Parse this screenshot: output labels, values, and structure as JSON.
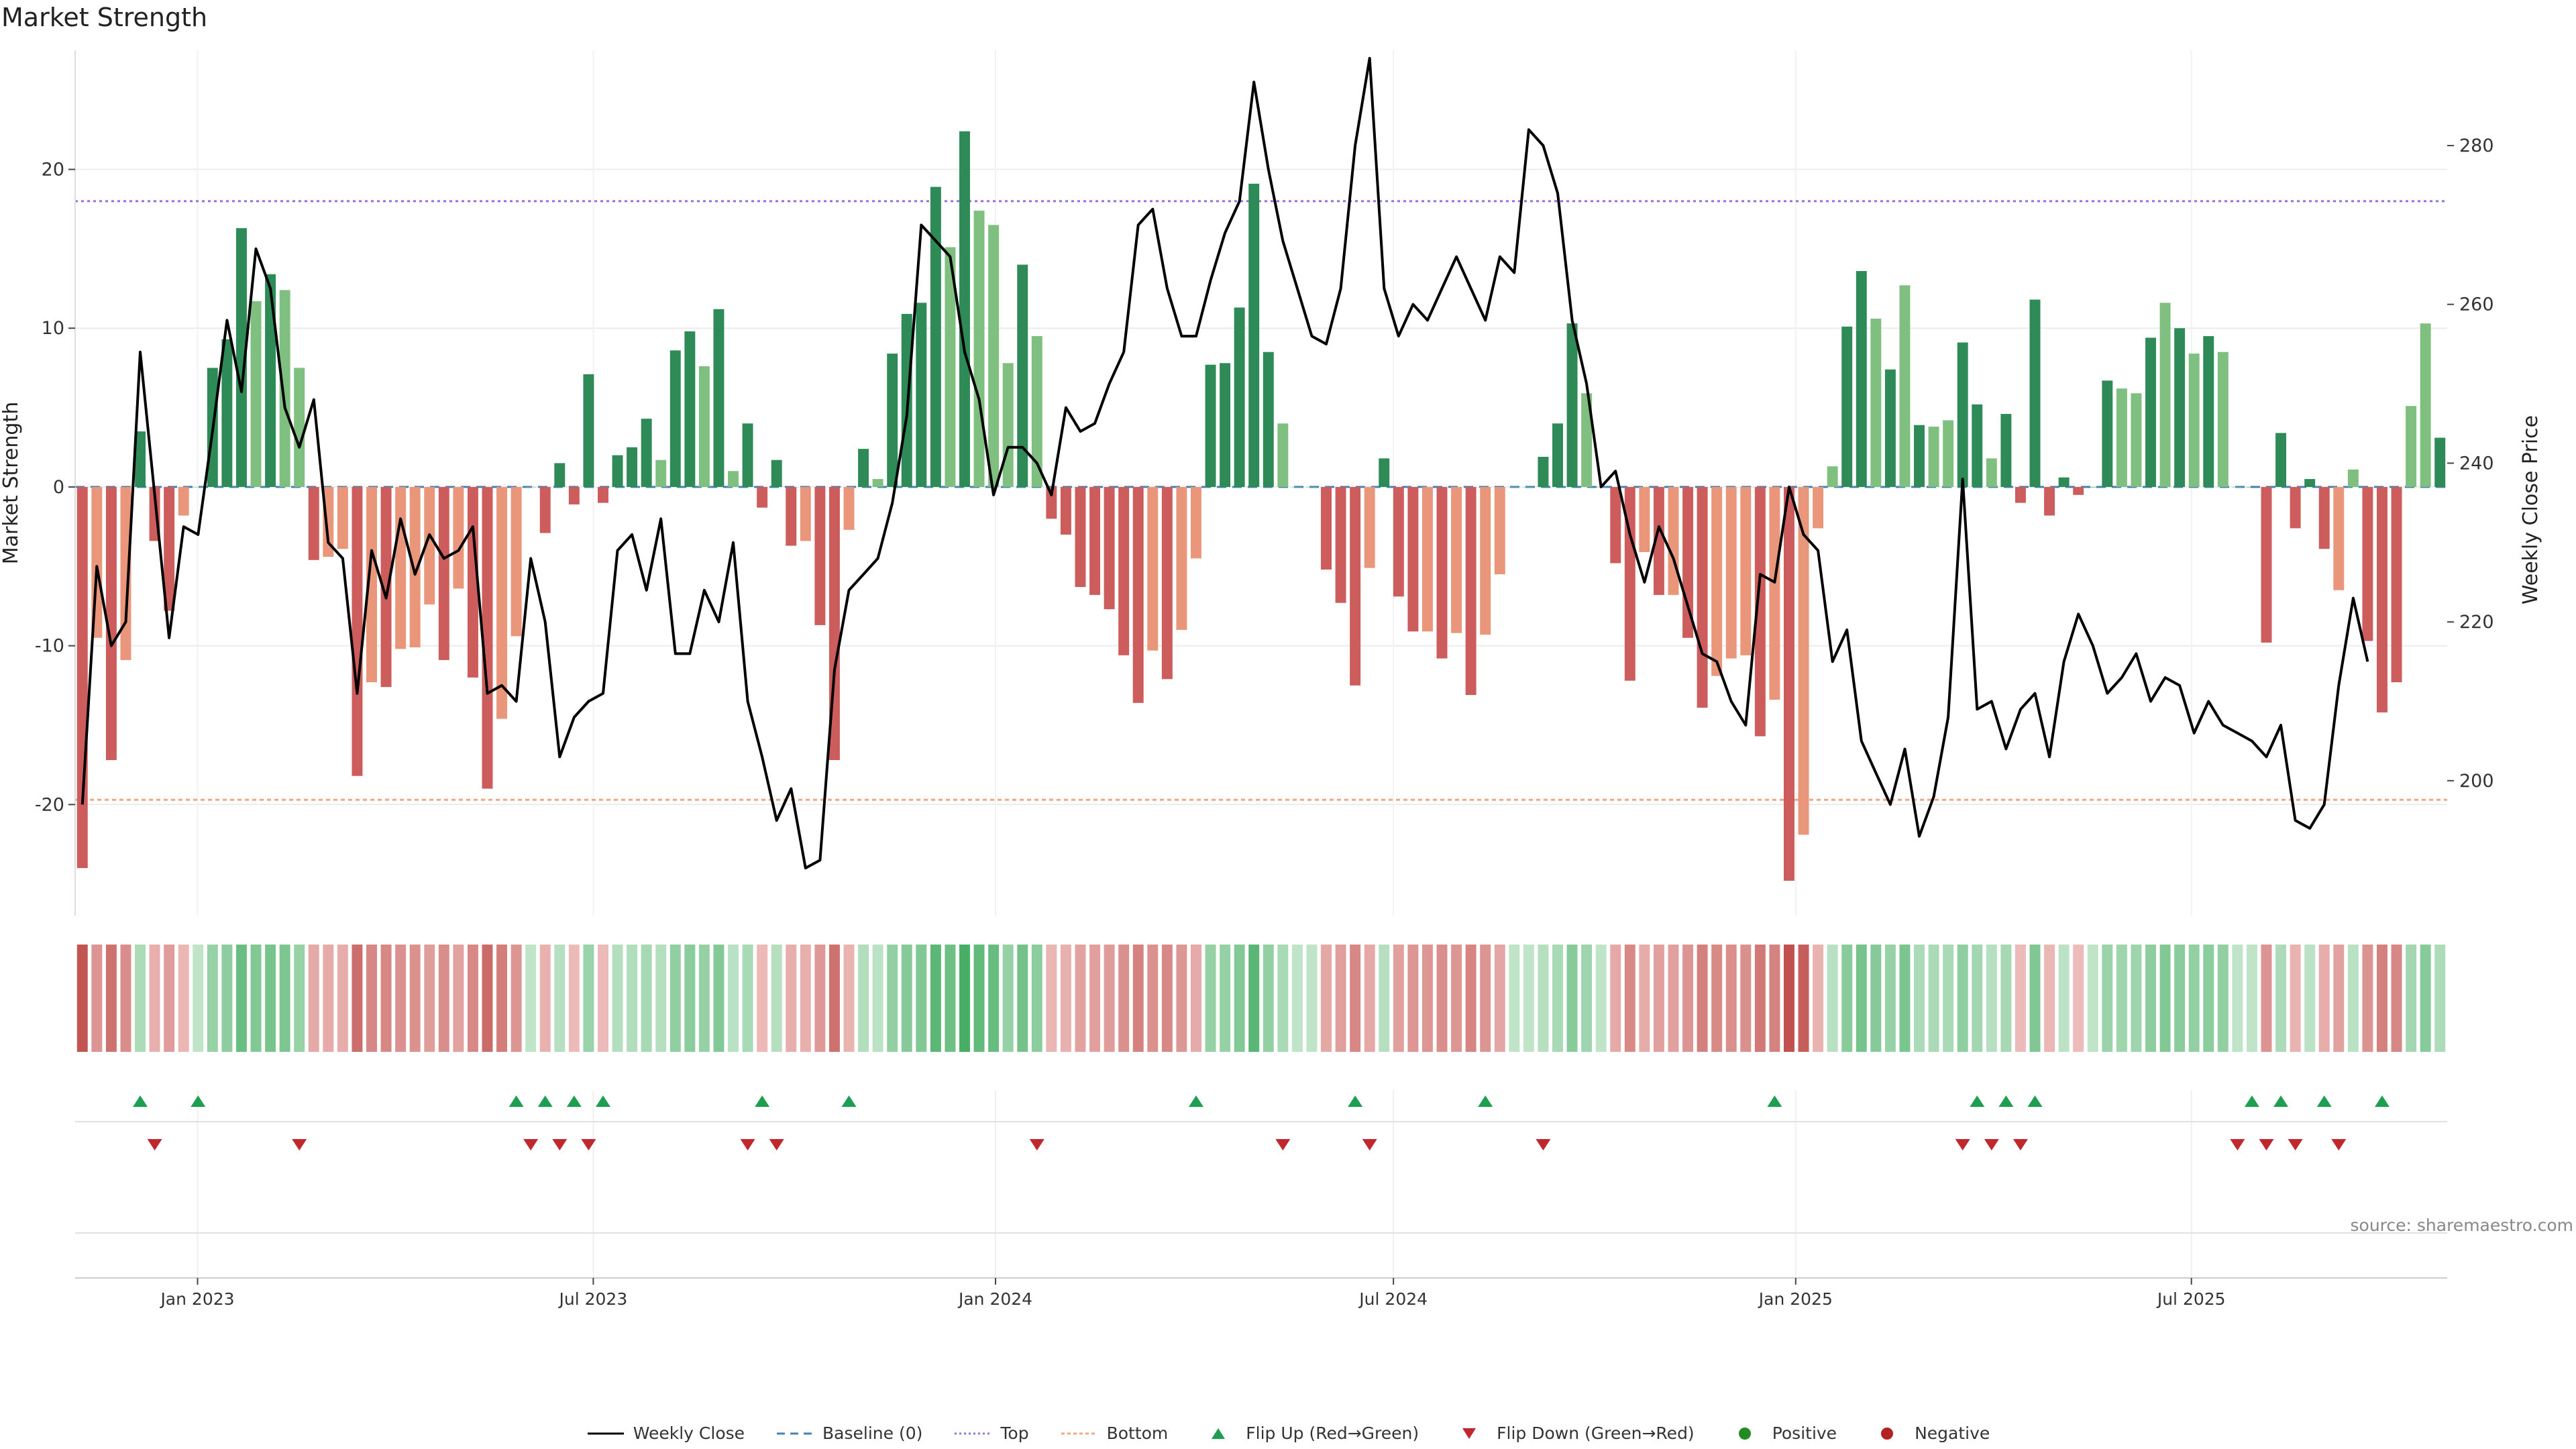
{
  "title": "Market Strength",
  "source": "source: sharemaestro.com",
  "colors": {
    "strong_green": "#2e8b57",
    "light_green": "#7fbf7f",
    "strong_red": "#cd5c5c",
    "light_red": "#e9967a",
    "price_line": "#000000",
    "baseline": "#4682b4",
    "top_line": "#9370db",
    "bottom_line": "#f4a582",
    "flip_up": "#1e9e50",
    "flip_down": "#c0282d",
    "positive": "#228b22",
    "negative": "#b22222"
  },
  "legend": [
    {
      "label": "Weekly Close",
      "key": "close"
    },
    {
      "label": "Baseline (0)",
      "key": "baseline"
    },
    {
      "label": "Top",
      "key": "top"
    },
    {
      "label": "Bottom",
      "key": "bottom"
    },
    {
      "label": "Flip Up (Red→Green)",
      "key": "flip_up"
    },
    {
      "label": "Flip Down (Green→Red)",
      "key": "flip_down"
    },
    {
      "label": "Positive",
      "key": "positive"
    },
    {
      "label": "Negative",
      "key": "negative"
    }
  ],
  "chart_data": {
    "type": "bar",
    "ylabel": "Market Strength",
    "y2label": "Weekly Close Price",
    "ylim": [
      -27,
      27.5
    ],
    "y_ticks": [
      -20,
      -10,
      0,
      10,
      20
    ],
    "y2lim": [
      183,
      292
    ],
    "y2_ticks": [
      200,
      220,
      240,
      260,
      280
    ],
    "top_threshold": 18,
    "bottom_threshold": -19.7,
    "x_start": "2022-11-06",
    "x_end": "2025-10-26",
    "x_ticks": [
      {
        "date": "2023-01-01",
        "label": "Jan 2023"
      },
      {
        "date": "2023-07-01",
        "label": "Jul 2023"
      },
      {
        "date": "2024-01-01",
        "label": "Jan 2024"
      },
      {
        "date": "2024-07-01",
        "label": "Jul 2024"
      },
      {
        "date": "2025-01-01",
        "label": "Jan 2025"
      },
      {
        "date": "2025-07-01",
        "label": "Jul 2025"
      }
    ],
    "strength": [
      -24,
      -9.5,
      -17.2,
      -10.9,
      3.5,
      -3.4,
      -7.8,
      -1.8,
      0,
      7.5,
      9.3,
      16.3,
      11.7,
      13.4,
      12.4,
      7.5,
      -4.6,
      -4.4,
      -3.9,
      -18.2,
      -12.3,
      -12.6,
      -10.2,
      -10.1,
      -7.4,
      -10.9,
      -6.4,
      -12,
      -19,
      -14.6,
      -9.4,
      0,
      -2.9,
      1.5,
      -1.1,
      7.1,
      -1,
      2,
      2.5,
      4.3,
      1.7,
      8.6,
      9.8,
      7.6,
      11.2,
      1,
      4,
      -1.3,
      1.7,
      -3.7,
      -3.4,
      -8.7,
      -17.2,
      -2.7,
      2.4,
      0.5,
      8.4,
      10.9,
      11.6,
      18.9,
      15.1,
      22.4,
      17.4,
      16.5,
      7.8,
      14,
      9.5,
      -2,
      -3,
      -6.3,
      -6.8,
      -7.7,
      -10.6,
      -13.6,
      -10.3,
      -12.1,
      -9,
      -4.5,
      7.7,
      7.8,
      11.3,
      19.1,
      8.5,
      4,
      0,
      0,
      -5.2,
      -7.3,
      -12.5,
      -5.1,
      1.8,
      -6.9,
      -9.1,
      -9.1,
      -10.8,
      -9.2,
      -13.1,
      -9.3,
      -5.5,
      0,
      0,
      1.9,
      4,
      10.3,
      5.9,
      0,
      -4.8,
      -12.2,
      -4.1,
      -6.8,
      -6.8,
      -9.5,
      -13.9,
      -11.9,
      -10.8,
      -10.6,
      -15.7,
      -13.4,
      -24.8,
      -21.9,
      -2.6,
      1.3,
      10.1,
      13.6,
      10.6,
      7.4,
      12.7,
      3.9,
      3.8,
      4.2,
      9.1,
      5.2,
      1.8,
      4.6,
      -1,
      11.8,
      -1.8,
      0.6,
      -0.5,
      0,
      6.7,
      6.2,
      5.9,
      9.4,
      11.6,
      10,
      8.4,
      9.5,
      8.5,
      0,
      0,
      -9.8,
      3.4,
      -2.6,
      0.5,
      -3.9,
      -6.5,
      1.1,
      -9.7,
      -14.2,
      -12.3,
      5.1,
      10.3,
      3.1
    ],
    "strength_shade": [
      1,
      0,
      1,
      0,
      1,
      1,
      1,
      0,
      0,
      1,
      1,
      1,
      0,
      1,
      0,
      0,
      1,
      0,
      0,
      1,
      0,
      1,
      0,
      0,
      0,
      1,
      0,
      1,
      1,
      0,
      0,
      0,
      1,
      1,
      1,
      1,
      1,
      1,
      1,
      1,
      0,
      1,
      1,
      0,
      1,
      0,
      1,
      1,
      1,
      1,
      0,
      1,
      1,
      0,
      1,
      0,
      1,
      1,
      1,
      1,
      0,
      1,
      0,
      0,
      0,
      1,
      0,
      1,
      1,
      1,
      1,
      1,
      1,
      1,
      0,
      1,
      0,
      0,
      1,
      1,
      1,
      1,
      1,
      0,
      0,
      0,
      1,
      1,
      1,
      0,
      1,
      1,
      1,
      0,
      1,
      0,
      1,
      0,
      0,
      0,
      0,
      1,
      1,
      1,
      0,
      0,
      1,
      1,
      0,
      1,
      0,
      1,
      1,
      0,
      0,
      0,
      1,
      0,
      1,
      0,
      0,
      0,
      1,
      1,
      0,
      1,
      0,
      1,
      0,
      0,
      1,
      1,
      0,
      1,
      1,
      1,
      1,
      1,
      1,
      1,
      1,
      0,
      0,
      1,
      0,
      1,
      0,
      1,
      0,
      0,
      1,
      1,
      1,
      1,
      1,
      1,
      0,
      0,
      1,
      1,
      1,
      0,
      0,
      1,
      1,
      1,
      0
    ],
    "close": [
      197,
      227,
      217,
      220,
      254,
      236,
      218,
      232,
      231,
      244,
      258,
      249,
      267,
      262,
      247,
      242,
      248,
      230,
      228,
      211,
      229,
      223,
      233,
      226,
      231,
      228,
      229,
      232,
      211,
      212,
      210,
      228,
      220,
      203,
      208,
      210,
      211,
      229,
      231,
      224,
      233,
      216,
      216,
      224,
      220,
      230,
      210,
      203,
      195,
      199,
      189,
      190,
      214,
      224,
      226,
      228,
      235,
      246,
      270,
      268,
      266,
      254,
      248,
      236,
      242,
      242,
      240,
      236,
      247,
      244,
      245,
      250,
      254,
      270,
      272,
      262,
      256,
      256,
      263,
      269,
      273,
      288,
      277,
      268,
      262,
      256,
      255,
      262,
      280,
      291,
      262,
      256,
      260,
      258,
      262,
      266,
      262,
      258,
      266,
      264,
      282,
      280,
      274,
      258,
      250,
      237,
      239,
      231,
      225,
      232,
      228,
      222,
      216,
      215,
      210,
      207,
      226,
      225,
      237,
      231,
      229,
      215,
      219,
      205,
      201,
      197,
      204,
      193,
      198,
      208,
      238,
      209,
      210,
      204,
      209,
      211,
      203,
      215,
      221,
      217,
      211,
      213,
      216,
      210,
      213,
      212,
      206,
      210,
      207,
      206,
      205,
      203,
      207,
      195,
      194,
      197,
      212,
      223,
      215
    ],
    "flip_up_index": [
      4,
      8,
      30,
      32,
      34,
      36,
      47,
      53,
      77,
      88,
      97,
      117,
      131,
      133,
      135,
      150,
      152,
      155,
      159
    ],
    "flip_down_index": [
      5,
      15,
      31,
      33,
      35,
      46,
      48,
      66,
      83,
      89,
      101,
      130,
      132,
      134,
      149,
      151,
      153,
      156
    ]
  }
}
